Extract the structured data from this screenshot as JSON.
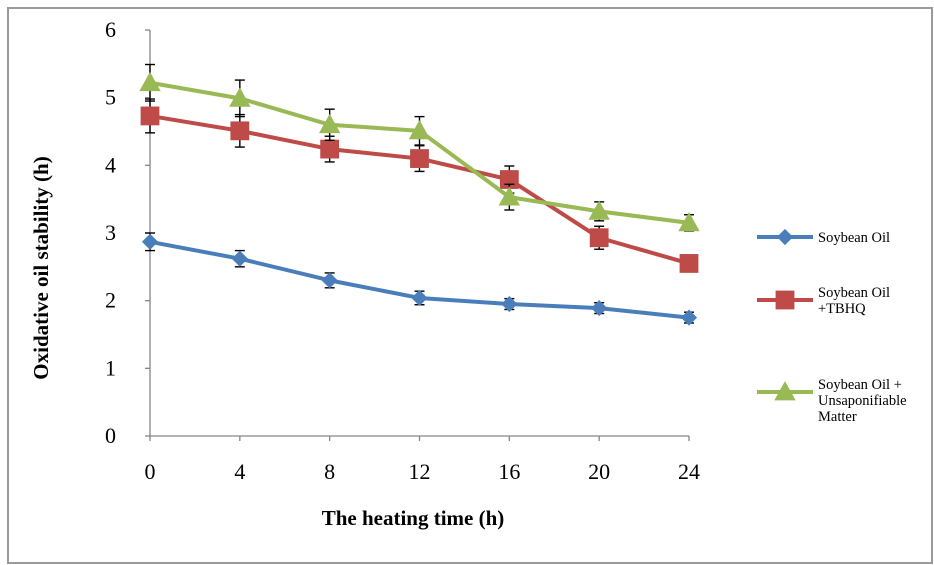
{
  "chart_data": {
    "type": "line",
    "title": "",
    "xlabel": "The heating time (h)",
    "ylabel": "Oxidative oil  stability (h)",
    "categories": [
      0,
      4,
      8,
      12,
      16,
      20,
      24
    ],
    "ylim": [
      0,
      6
    ],
    "yticks": [
      0,
      1,
      2,
      3,
      4,
      5,
      6
    ],
    "grid": false,
    "legend_position": "right",
    "series": [
      {
        "name": "Soybean Oil",
        "legend_lines": [
          "Soybean Oil"
        ],
        "color": "#4a7ebb",
        "marker": "diamond",
        "values": [
          2.87,
          2.62,
          2.3,
          2.04,
          1.95,
          1.89,
          1.75
        ],
        "errors": [
          0.13,
          0.12,
          0.11,
          0.1,
          0.08,
          0.08,
          0.08
        ]
      },
      {
        "name": "Soybean Oil +TBHQ",
        "legend_lines": [
          "Soybean Oil",
          "+TBHQ"
        ],
        "color": "#be4b48",
        "marker": "square",
        "values": [
          4.73,
          4.51,
          4.24,
          4.1,
          3.79,
          2.93,
          2.55
        ],
        "errors": [
          0.25,
          0.24,
          0.19,
          0.19,
          0.2,
          0.17,
          0.0
        ]
      },
      {
        "name": "Soybean Oil + Unsaponifiable Matter",
        "legend_lines": [
          "Soybean Oil +",
          "Unsaponifiable",
          "Matter"
        ],
        "color": "#98b954",
        "marker": "triangle",
        "values": [
          5.22,
          4.99,
          4.6,
          4.51,
          3.53,
          3.32,
          3.15
        ],
        "errors": [
          0.27,
          0.27,
          0.23,
          0.21,
          0.19,
          0.14,
          0.12
        ]
      }
    ]
  }
}
